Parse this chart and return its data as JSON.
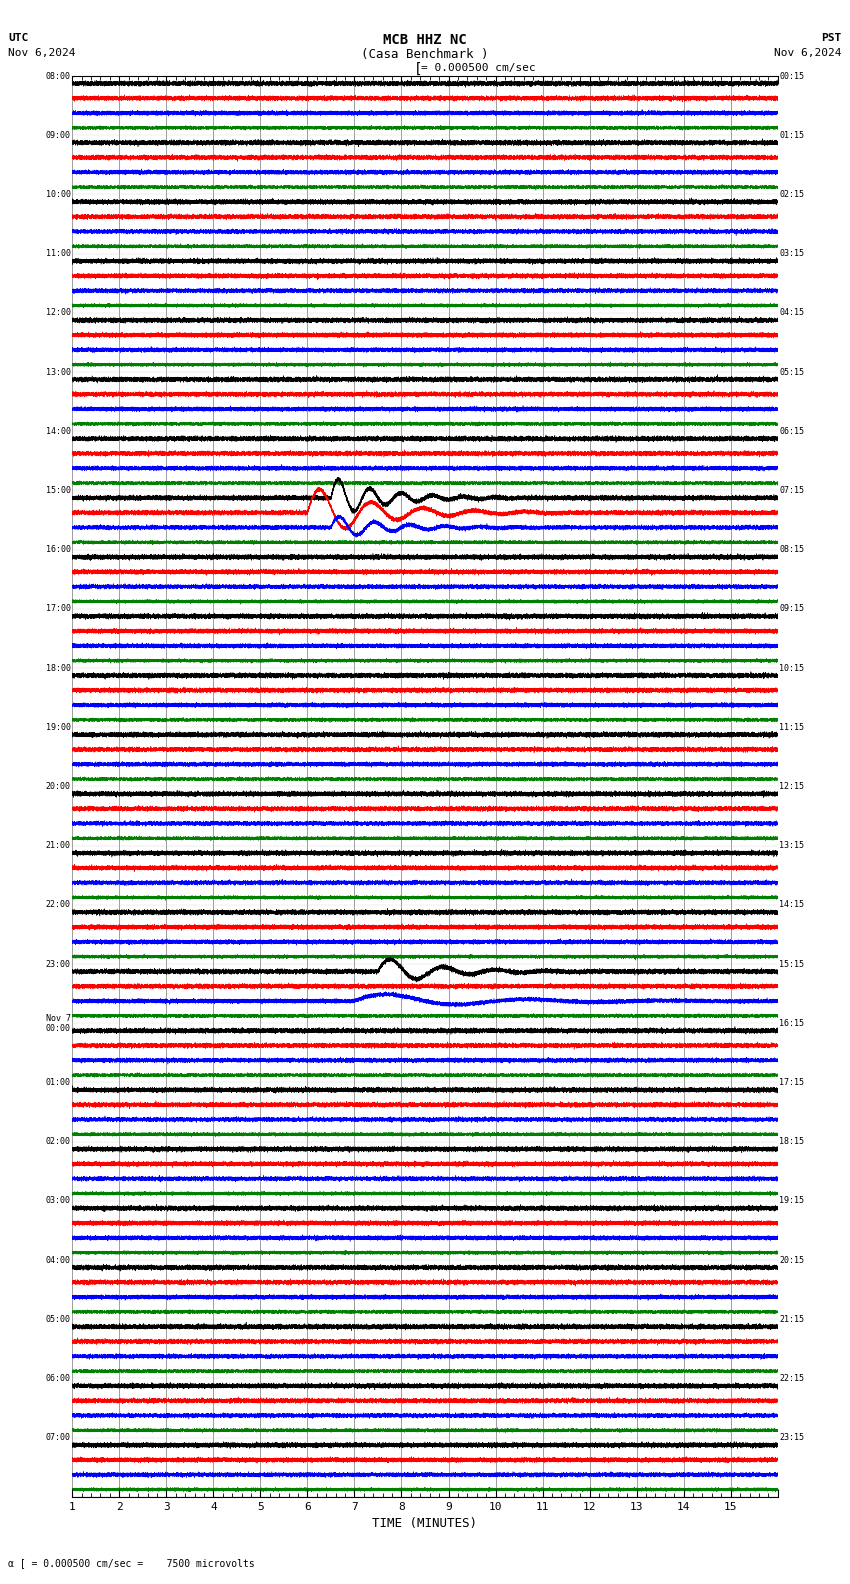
{
  "title_line1": "MCB HHZ NC",
  "title_line2": "(Casa Benchmark )",
  "scale_label": "= 0.000500 cm/sec",
  "utc_label": "UTC",
  "utc_date": "Nov 6,2024",
  "pst_label": "PST",
  "pst_date": "Nov 6,2024",
  "bottom_label": "= 0.000500 cm/sec =    7500 microvolts",
  "xlabel": "TIME (MINUTES)",
  "left_times_utc": [
    "08:00",
    "09:00",
    "10:00",
    "11:00",
    "12:00",
    "13:00",
    "14:00",
    "15:00",
    "16:00",
    "17:00",
    "18:00",
    "19:00",
    "20:00",
    "21:00",
    "22:00",
    "23:00",
    "Nov 7\n00:00",
    "01:00",
    "02:00",
    "03:00",
    "04:00",
    "05:00",
    "06:00",
    "07:00"
  ],
  "right_times_pst": [
    "00:15",
    "01:15",
    "02:15",
    "03:15",
    "04:15",
    "05:15",
    "06:15",
    "07:15",
    "08:15",
    "09:15",
    "10:15",
    "11:15",
    "12:15",
    "13:15",
    "14:15",
    "15:15",
    "16:15",
    "17:15",
    "18:15",
    "19:15",
    "20:15",
    "21:15",
    "22:15",
    "23:15"
  ],
  "n_rows": 24,
  "n_traces_per_row": 4,
  "colors": [
    "black",
    "red",
    "blue",
    "green"
  ],
  "bg_color": "#ffffff",
  "grid_color": "#888888",
  "n_minutes": 15,
  "figwidth": 8.5,
  "figheight": 15.84,
  "dpi": 100
}
